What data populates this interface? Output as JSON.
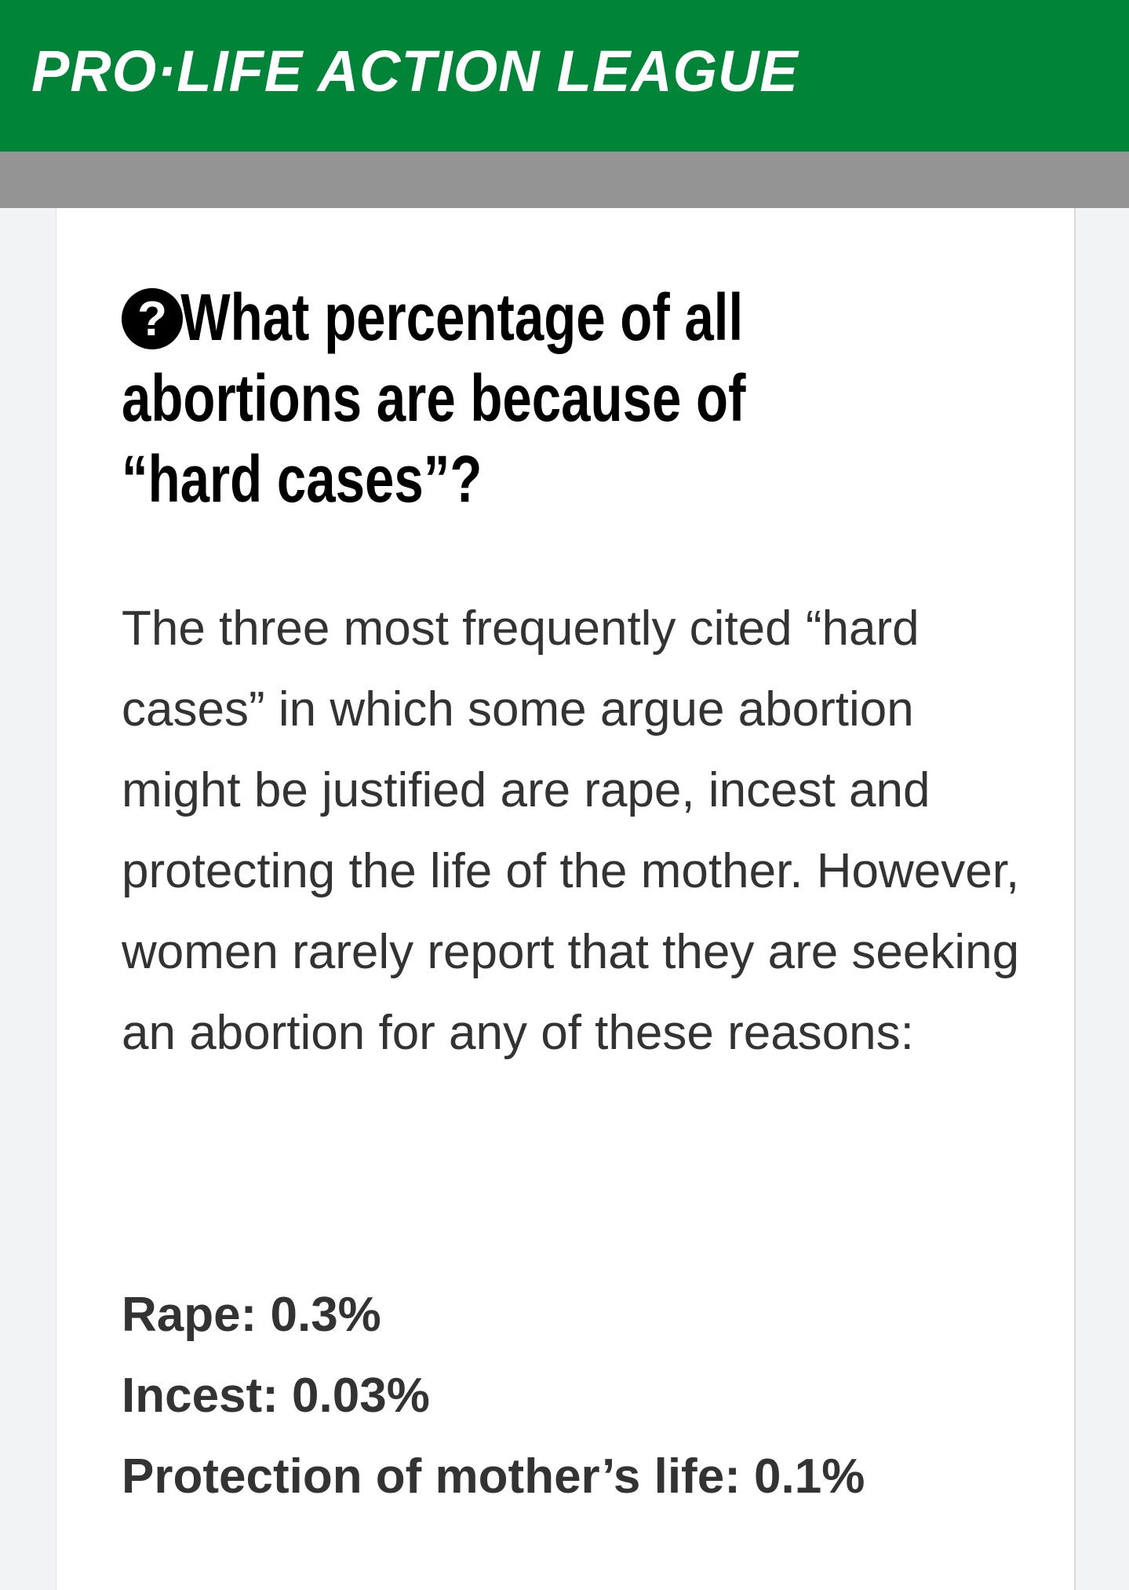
{
  "header": {
    "logo_text": "PRO·LIFE ACTION LEAGUE",
    "brand_color": "#008437"
  },
  "article": {
    "icon": "question-circle-icon",
    "title": "What percentage of all abortions are because of “hard cases”?",
    "body": "The three most frequently cited “hard cases” in which some argue abortion might be justified are rape, incest and protecting the life of the mother. However, women rarely report that they are seeking an abortion for any of these reasons:",
    "stats": [
      "Rape: 0.3%",
      "Incest: 0.03%",
      "Protection of mother’s life: 0.1%"
    ]
  }
}
